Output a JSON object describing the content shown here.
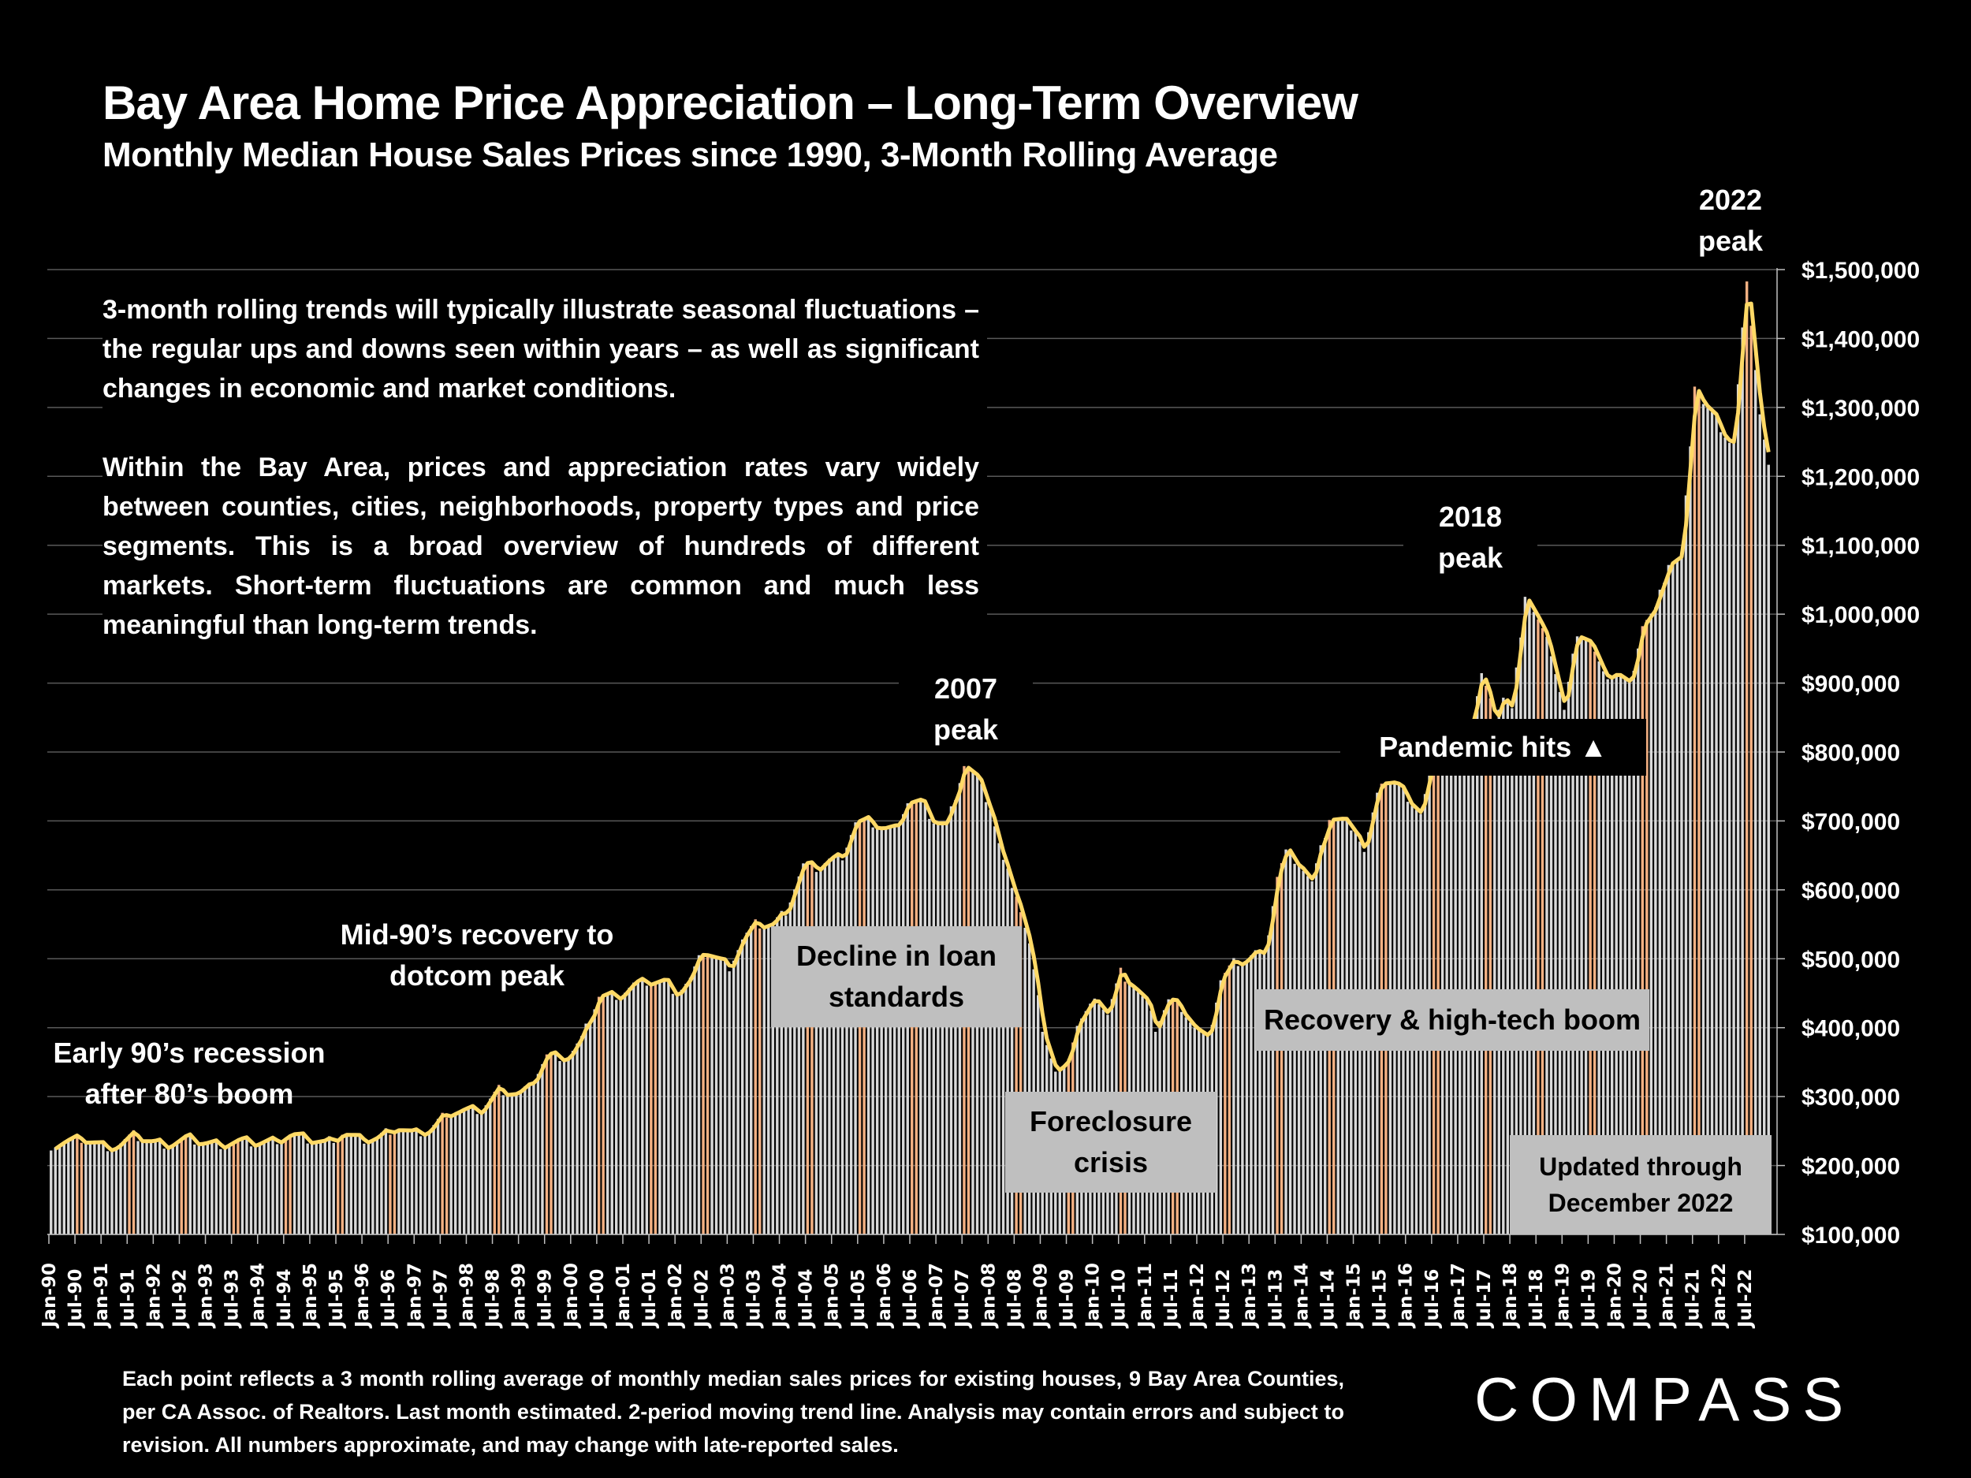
{
  "header": {
    "title": "Bay Area Home Price Appreciation – Long-Term Overview",
    "subtitle": "Monthly Median House Sales Prices since 1990, 3-Month Rolling Average"
  },
  "intro_text": [
    "3-month rolling trends will typically illustrate seasonal fluctuations – the regular ups and downs seen within years – as well as significant changes in economic and market conditions.",
    "Within the Bay Area, prices and appreciation rates vary widely between counties, cities, neighborhoods, property types and price segments. This is a broad overview of hundreds of different markets. Short-term fluctuations are common and much less meaningful than long-term trends."
  ],
  "annotations": {
    "early90s": "Early 90’s recession after 80’s boom",
    "mid90s": "Mid-90’s recovery to dotcom peak",
    "peak2007": "2007 peak",
    "decline": "Decline in loan standards",
    "foreclosure": "Foreclosure crisis",
    "recovery": "Recovery & high-tech boom",
    "pandemic": "Pandemic hits ▲",
    "peak2018": "2018 peak",
    "peak2022": "2022 peak",
    "updated": "Updated through December 2022"
  },
  "footnote": "Each point reflects a 3 month rolling average of monthly median sales prices for existing houses, 9 Bay Area Counties, per CA Assoc. of Realtors. Last month estimated. 2-period moving trend line. Analysis may contain errors and subject to revision. All numbers approximate, and may change with late-reported sales.",
  "brand": {
    "logo_text": "COMPASS"
  },
  "colors": {
    "background": "#000000",
    "bar": "#d9d9d9",
    "bar_summer": "#f4b183",
    "trend_line": "#ffd966",
    "grid": "#595959",
    "label_box": "#bfbfbf"
  },
  "chart_data": {
    "type": "bar",
    "title": "Bay Area Home Price Appreciation – Long-Term Overview",
    "subtitle": "Monthly Median House Sales Prices since 1990, 3-Month Rolling Average",
    "xlabel": "",
    "ylabel": "",
    "ylim": [
      100000,
      1500000
    ],
    "y_ticks": [
      "$100,000",
      "$200,000",
      "$300,000",
      "$400,000",
      "$500,000",
      "$600,000",
      "$700,000",
      "$800,000",
      "$900,000",
      "$1,000,000",
      "$1,100,000",
      "$1,200,000",
      "$1,300,000",
      "$1,400,000",
      "$1,500,000"
    ],
    "y_axis_side": "right",
    "grid": true,
    "x_start": "Jan-90",
    "x_end": "Dec-22",
    "x_tick_labels": [
      "Jan-90",
      "Jul-90",
      "Jan-91",
      "Jul-91",
      "Jan-92",
      "Jul-92",
      "Jan-93",
      "Jul-93",
      "Jan-94",
      "Jul-94",
      "Jan-95",
      "Jul-95",
      "Jan-96",
      "Jul-96",
      "Jan-97",
      "Jul-97",
      "Jan-98",
      "Jul-98",
      "Jan-99",
      "Jul-99",
      "Jan-00",
      "Jul-00",
      "Jan-01",
      "Jul-01",
      "Jan-02",
      "Jul-02",
      "Jan-03",
      "Jul-03",
      "Jan-04",
      "Jul-04",
      "Jan-05",
      "Jul-05",
      "Jan-06",
      "Jul-06",
      "Jan-07",
      "Jul-07",
      "Jan-08",
      "Jul-08",
      "Jan-09",
      "Jul-09",
      "Jan-10",
      "Jul-10",
      "Jan-11",
      "Jul-11",
      "Jan-12",
      "Jul-12",
      "Jan-13",
      "Jul-13",
      "Jan-14",
      "Jul-14",
      "Jan-15",
      "Jul-15",
      "Jan-16",
      "Jul-16",
      "Jan-17",
      "Jul-17",
      "Jan-18",
      "Jul-18",
      "Jan-19",
      "Jul-19",
      "Jan-20",
      "Jul-20",
      "Jan-21",
      "Jul-21",
      "Jan-22",
      "Jul-22"
    ],
    "series": [
      {
        "name": "3-month rolling average median price",
        "type": "bar"
      },
      {
        "name": "2-period moving trend line",
        "type": "line"
      }
    ],
    "yearly_anchor_values": {
      "note": "approximate values read off chart; monthly values interpolated between these anchors",
      "points": [
        [
          "Jan-90",
          229000
        ],
        [
          "Apr-90",
          235000
        ],
        [
          "Aug-90",
          239000
        ],
        [
          "Jan-91",
          228000
        ],
        [
          "Apr-91",
          228000
        ],
        [
          "Aug-91",
          244000
        ],
        [
          "Dec-91",
          234000
        ],
        [
          "Apr-92",
          231000
        ],
        [
          "Aug-92",
          240000
        ],
        [
          "Dec-92",
          233000
        ],
        [
          "Apr-93",
          231000
        ],
        [
          "Aug-93",
          236000
        ],
        [
          "Dec-93",
          233000
        ],
        [
          "Apr-94",
          236000
        ],
        [
          "Aug-94",
          245000
        ],
        [
          "Dec-94",
          238000
        ],
        [
          "Apr-95",
          233000
        ],
        [
          "Aug-95",
          247000
        ],
        [
          "Dec-95",
          237000
        ],
        [
          "Apr-96",
          240000
        ],
        [
          "Aug-96",
          256000
        ],
        [
          "Dec-96",
          246000
        ],
        [
          "Apr-97",
          251000
        ],
        [
          "Aug-97",
          277000
        ],
        [
          "Dec-97",
          280000
        ],
        [
          "Apr-98",
          281000
        ],
        [
          "Aug-98",
          311000
        ],
        [
          "Dec-98",
          304000
        ],
        [
          "Mar-99",
          313000
        ],
        [
          "Jul-99",
          360000
        ],
        [
          "Dec-99",
          358000
        ],
        [
          "Mar-00",
          383000
        ],
        [
          "Jul-00",
          446000
        ],
        [
          "Dec-00",
          448000
        ],
        [
          "Mar-01",
          463000
        ],
        [
          "Jun-01",
          467000
        ],
        [
          "Oct-01",
          467000
        ],
        [
          "Jan-02",
          451000
        ],
        [
          "Apr-02",
          470000
        ],
        [
          "Jul-02",
          512000
        ],
        [
          "Oct-02",
          500000
        ],
        [
          "Jan-03",
          489000
        ],
        [
          "Apr-03",
          528000
        ],
        [
          "Jul-03",
          550000
        ],
        [
          "Nov-03",
          550000
        ],
        [
          "Feb-04",
          570000
        ],
        [
          "Jun-04",
          636000
        ],
        [
          "Sep-04",
          632000
        ],
        [
          "Dec-04",
          644000
        ],
        [
          "Mar-05",
          650000
        ],
        [
          "Jun-05",
          698000
        ],
        [
          "Sep-05",
          700000
        ],
        [
          "Dec-05",
          690000
        ],
        [
          "Mar-06",
          688000
        ],
        [
          "Jun-06",
          728000
        ],
        [
          "Sep-06",
          727000
        ],
        [
          "Dec-06",
          700000
        ],
        [
          "Mar-07",
          693000
        ],
        [
          "Jul-07",
          782000
        ],
        [
          "Oct-07",
          760000
        ],
        [
          "Jan-08",
          720000
        ],
        [
          "Apr-08",
          640000
        ],
        [
          "Jul-08",
          595000
        ],
        [
          "Oct-08",
          520000
        ],
        [
          "Jan-09",
          400000
        ],
        [
          "Apr-09",
          335000
        ],
        [
          "Jun-09",
          340000
        ],
        [
          "Sep-09",
          405000
        ],
        [
          "Dec-09",
          430000
        ],
        [
          "Feb-10",
          440000
        ],
        [
          "Apr-10",
          420000
        ],
        [
          "Jul-10",
          481000
        ],
        [
          "Oct-10",
          460000
        ],
        [
          "Jan-11",
          435000
        ],
        [
          "Mar-11",
          400000
        ],
        [
          "Jun-11",
          440000
        ],
        [
          "Sep-11",
          430000
        ],
        [
          "Dec-11",
          400000
        ],
        [
          "Mar-12",
          380000
        ],
        [
          "Jun-12",
          470000
        ],
        [
          "Sep-12",
          495000
        ],
        [
          "Dec-12",
          500000
        ],
        [
          "Feb-13",
          510000
        ],
        [
          "Apr-13",
          500000
        ],
        [
          "Jul-13",
          620000
        ],
        [
          "Sep-13",
          655000
        ],
        [
          "Dec-13",
          640000
        ],
        [
          "Mar-14",
          610000
        ],
        [
          "Jul-14",
          705000
        ],
        [
          "Oct-14",
          700000
        ],
        [
          "Jan-15",
          690000
        ],
        [
          "Mar-15",
          655000
        ],
        [
          "Jul-15",
          760000
        ],
        [
          "Oct-15",
          755000
        ],
        [
          "Jan-16",
          735000
        ],
        [
          "Apr-16",
          710000
        ],
        [
          "Jul-16",
          790000
        ],
        [
          "Oct-16",
          795000
        ],
        [
          "Jan-17",
          810000
        ],
        [
          "Apr-17",
          850000
        ],
        [
          "Jun-17",
          912000
        ],
        [
          "Sep-17",
          850000
        ],
        [
          "Nov-17",
          880000
        ],
        [
          "Jan-18",
          860000
        ],
        [
          "Apr-18",
          1030000
        ],
        [
          "Jul-18",
          990000
        ],
        [
          "Oct-18",
          945000
        ],
        [
          "Jan-19",
          860000
        ],
        [
          "Apr-19",
          975000
        ],
        [
          "Jul-19",
          960000
        ],
        [
          "Oct-19",
          910000
        ],
        [
          "Jan-20",
          915000
        ],
        [
          "Apr-20",
          895000
        ],
        [
          "Jul-20",
          985000
        ],
        [
          "Oct-20",
          1005000
        ],
        [
          "Jan-21",
          1075000
        ],
        [
          "Apr-21",
          1082000
        ],
        [
          "Jul-21",
          1335000
        ],
        [
          "Sep-21",
          1305000
        ],
        [
          "Dec-21",
          1280000
        ],
        [
          "Mar-22",
          1250000
        ],
        [
          "Apr-22",
          1250000
        ],
        [
          "Jul-22",
          1490000
        ],
        [
          "Oct-22",
          1290000
        ],
        [
          "Dec-22",
          1212000
        ]
      ]
    }
  }
}
